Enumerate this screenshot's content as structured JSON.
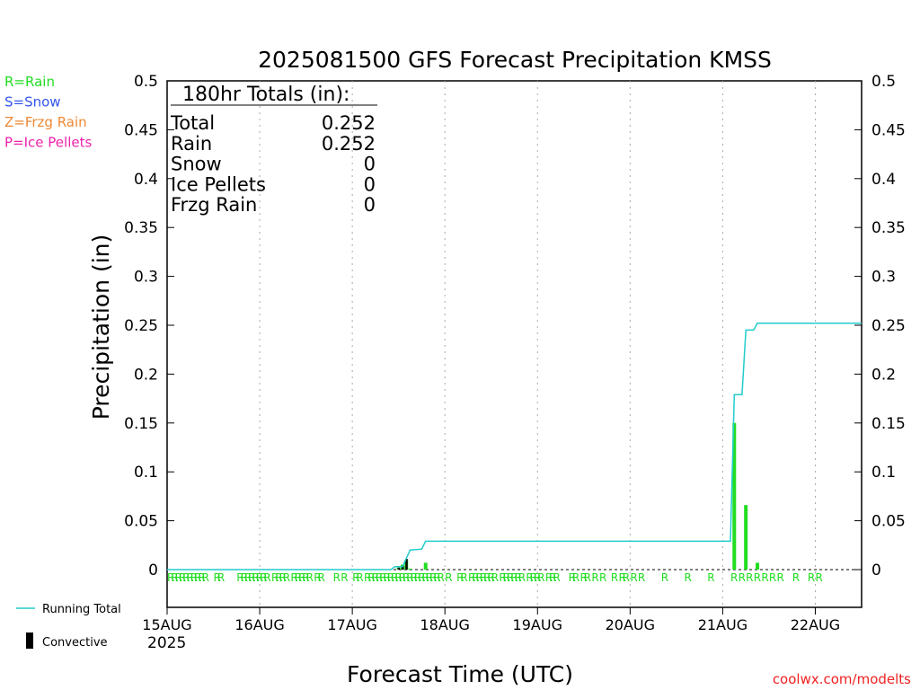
{
  "chart_data": {
    "type": "bar",
    "title": "2025081500 GFS Forecast Precipitation KMSS",
    "ylabel": "Precipitation (in)",
    "xlabel": "Forecast Time (UTC)",
    "ylim": [
      0,
      0.5
    ],
    "y_ticks": [
      "0",
      "0.05",
      "0.1",
      "0.15",
      "0.2",
      "0.25",
      "0.3",
      "0.35",
      "0.4",
      "0.45",
      "0.5"
    ],
    "x_range_hours": [
      0,
      180
    ],
    "x_ticks": [
      {
        "hour": 0,
        "label": "15AUG"
      },
      {
        "hour": 24,
        "label": "16AUG"
      },
      {
        "hour": 48,
        "label": "17AUG"
      },
      {
        "hour": 72,
        "label": "18AUG"
      },
      {
        "hour": 96,
        "label": "19AUG"
      },
      {
        "hour": 120,
        "label": "20AUG"
      },
      {
        "hour": 144,
        "label": "21AUG"
      },
      {
        "hour": 168,
        "label": "22AUG"
      }
    ],
    "year_label": "2025",
    "precip_bars": [
      {
        "hour": 60,
        "value": 0.002,
        "convective": 0.002
      },
      {
        "hour": 61,
        "value": 0.005,
        "convective": 0.004
      },
      {
        "hour": 62,
        "value": 0.01,
        "convective": 0.011
      },
      {
        "hour": 63,
        "value": 0.001,
        "convective": 0
      },
      {
        "hour": 67,
        "value": 0.007,
        "convective": 0
      },
      {
        "hour": 147,
        "value": 0.15,
        "convective": 0
      },
      {
        "hour": 150,
        "value": 0.066,
        "convective": 0
      },
      {
        "hour": 153,
        "value": 0.007,
        "convective": 0
      }
    ],
    "running_total": [
      [
        0,
        0
      ],
      [
        58,
        0
      ],
      [
        59,
        0.003
      ],
      [
        61,
        0.003
      ],
      [
        63,
        0.02
      ],
      [
        66,
        0.021
      ],
      [
        67,
        0.029
      ],
      [
        146,
        0.029
      ],
      [
        147,
        0.179
      ],
      [
        149,
        0.179
      ],
      [
        150,
        0.245
      ],
      [
        152,
        0.245
      ],
      [
        153,
        0.252
      ],
      [
        180,
        0.252
      ]
    ],
    "ptype_markers": {
      "symbol": "R",
      "hours": [
        0,
        1,
        2,
        3,
        4,
        5,
        6,
        7,
        8,
        9,
        12,
        13,
        18,
        19,
        20,
        21,
        22,
        23,
        24,
        25,
        27,
        28,
        29,
        30,
        32,
        33,
        34,
        35,
        36,
        38,
        39,
        43,
        45,
        48,
        49,
        51,
        52,
        53,
        54,
        55,
        56,
        57,
        58,
        59,
        60,
        61,
        62,
        63,
        64,
        65,
        66,
        67,
        68,
        69,
        70,
        72,
        75,
        76,
        78,
        79,
        80,
        81,
        82,
        83,
        84,
        86,
        87,
        88,
        89,
        90,
        91,
        93,
        94,
        95,
        96,
        98,
        99,
        100,
        104,
        105,
        107,
        108,
        110,
        112,
        115,
        117,
        118,
        120,
        122,
        128,
        134,
        140,
        146,
        148,
        150,
        152,
        154,
        156,
        158,
        162,
        166,
        168
      ]
    },
    "totals_box": {
      "header": "180hr Totals (in):",
      "rows": [
        {
          "label": "Total",
          "value": "0.252"
        },
        {
          "label": "Rain",
          "value": "0.252"
        },
        {
          "label": "Snow",
          "value": "0"
        },
        {
          "label": "Ice Pellets",
          "value": "0"
        },
        {
          "label": "Frzg Rain",
          "value": "0"
        }
      ]
    },
    "ptype_legend": [
      {
        "text": "R=Rain",
        "color": "#22dd22"
      },
      {
        "text": "S=Snow",
        "color": "#3355ee"
      },
      {
        "text": "Z=Frzg Rain",
        "color": "#ee8833"
      },
      {
        "text": "P=Ice Pellets",
        "color": "#ee22aa"
      }
    ],
    "series_legend": [
      {
        "text": "Running Total",
        "color": "#22cccc"
      },
      {
        "text": "Convective",
        "color": "#000000"
      }
    ],
    "credit": "coolwx.com/modelts",
    "colors": {
      "precip": "#22dd22",
      "convective": "#000000",
      "running_total": "#22cccc",
      "grid": "#aaaaaa",
      "credit": "#ee2222"
    }
  }
}
